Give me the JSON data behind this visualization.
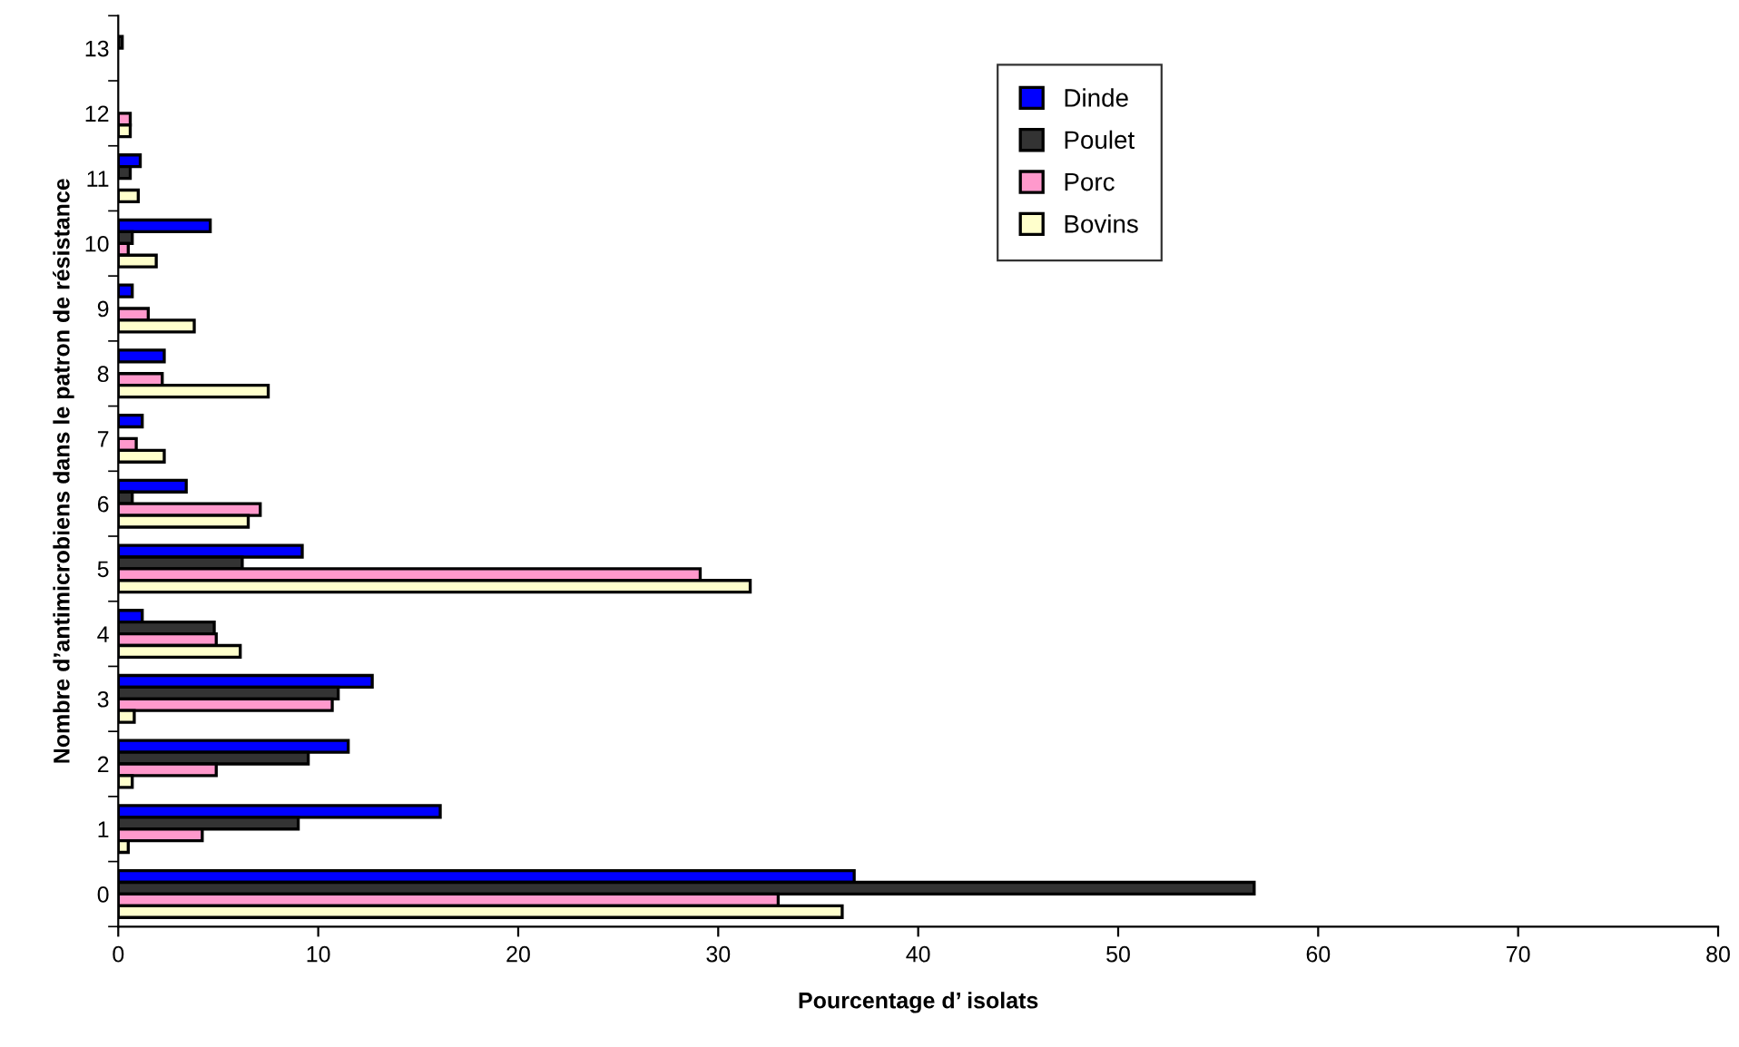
{
  "chart_data": {
    "type": "bar",
    "orientation": "horizontal",
    "xlabel": "Pourcentage d’ isolats",
    "ylabel": "Nombre d’antimicrobiens dans le patron de résistance",
    "categories": [
      "13",
      "12",
      "11",
      "10",
      "9",
      "8",
      "7",
      "6",
      "5",
      "4",
      "3",
      "2",
      "1",
      "0"
    ],
    "series": [
      {
        "name": "Dinde",
        "color": "#0000ff",
        "values": [
          null,
          null,
          1.1,
          4.6,
          0.7,
          2.3,
          1.2,
          3.4,
          9.2,
          1.2,
          12.7,
          11.5,
          16.1,
          36.8
        ]
      },
      {
        "name": "Poulet",
        "color": "#333333",
        "values": [
          0.2,
          null,
          0.6,
          0.7,
          null,
          null,
          null,
          0.7,
          6.2,
          4.8,
          11.0,
          9.5,
          9.0,
          56.8
        ]
      },
      {
        "name": "Porc",
        "color": "#ff99cc",
        "values": [
          null,
          0.6,
          null,
          0.5,
          1.5,
          2.2,
          0.9,
          7.1,
          29.1,
          4.9,
          10.7,
          4.9,
          4.2,
          33.0
        ]
      },
      {
        "name": "Bovins",
        "color": "#ffffcc",
        "values": [
          null,
          0.6,
          1.0,
          1.9,
          3.8,
          7.5,
          2.3,
          6.5,
          31.6,
          6.1,
          0.8,
          0.7,
          0.5,
          36.2
        ]
      }
    ],
    "xlim": [
      0,
      80
    ],
    "xticks": [
      0,
      10,
      20,
      30,
      40,
      50,
      60,
      70,
      80
    ],
    "grid": false,
    "legend": "top right"
  }
}
